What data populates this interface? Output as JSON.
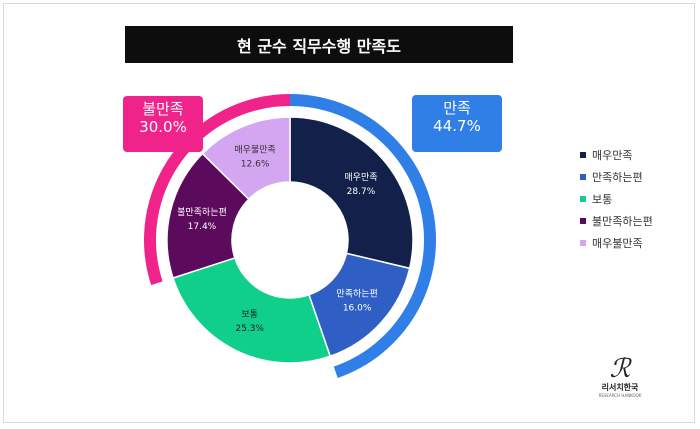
{
  "title": "현 군수 직무수행 만족도",
  "callouts": {
    "dissatisfied": {
      "label": "불만족",
      "value": "30.0%",
      "color": "#f0238a"
    },
    "satisfied": {
      "label": "만족",
      "value": "44.7%",
      "color": "#2f7fe6"
    }
  },
  "chart_data": {
    "type": "pie",
    "variant": "donut",
    "categories": [
      "매우만족",
      "만족하는편",
      "보통",
      "불만족하는편",
      "매우불만족"
    ],
    "values": [
      28.7,
      16.0,
      25.3,
      17.4,
      12.6
    ],
    "labels": [
      "28.7%",
      "16.0%",
      "25.3%",
      "17.4%",
      "12.6%"
    ],
    "colors": [
      "#13204a",
      "#2f5fc4",
      "#0fcf8a",
      "#5c0a5c",
      "#d4a6f2"
    ],
    "text_colors": [
      "#ffffff",
      "#ffffff",
      "#222222",
      "#ffffff",
      "#333333"
    ],
    "legend_position": "right",
    "groups": [
      {
        "label": "만족",
        "value": 44.7,
        "color": "#2f7fe6"
      },
      {
        "label": "불만족",
        "value": 30.0,
        "color": "#f0238a"
      }
    ]
  },
  "logo": {
    "name": "리서치한국",
    "sub": "RESEARCH HANKOOK"
  }
}
